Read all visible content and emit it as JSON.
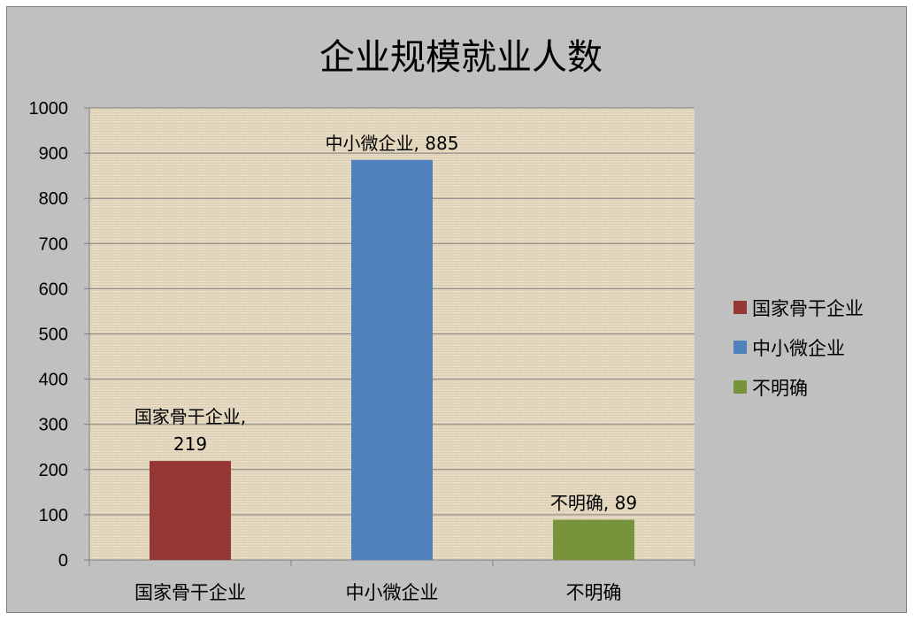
{
  "chart_data": {
    "type": "bar",
    "title": "企业规模就业人数",
    "categories": [
      "国家骨干企业",
      "中小微企业",
      "不明确"
    ],
    "values": [
      219,
      885,
      89
    ],
    "colors": [
      "#953735",
      "#4f81bd",
      "#77933c"
    ],
    "data_labels": [
      [
        "国家骨干企业,",
        "219"
      ],
      [
        "中小微企业, 885"
      ],
      [
        "不明确, 89"
      ]
    ],
    "ylim": [
      0,
      1000
    ],
    "yticks": [
      "0",
      "100",
      "200",
      "300",
      "400",
      "500",
      "600",
      "700",
      "800",
      "900",
      "1000"
    ],
    "grid": true,
    "plot_background": "#e8dcc4",
    "chart_background": "#c0c0c0",
    "legend": {
      "position": "right",
      "entries": [
        "国家骨干企业",
        "中小微企业",
        "不明确"
      ]
    }
  }
}
